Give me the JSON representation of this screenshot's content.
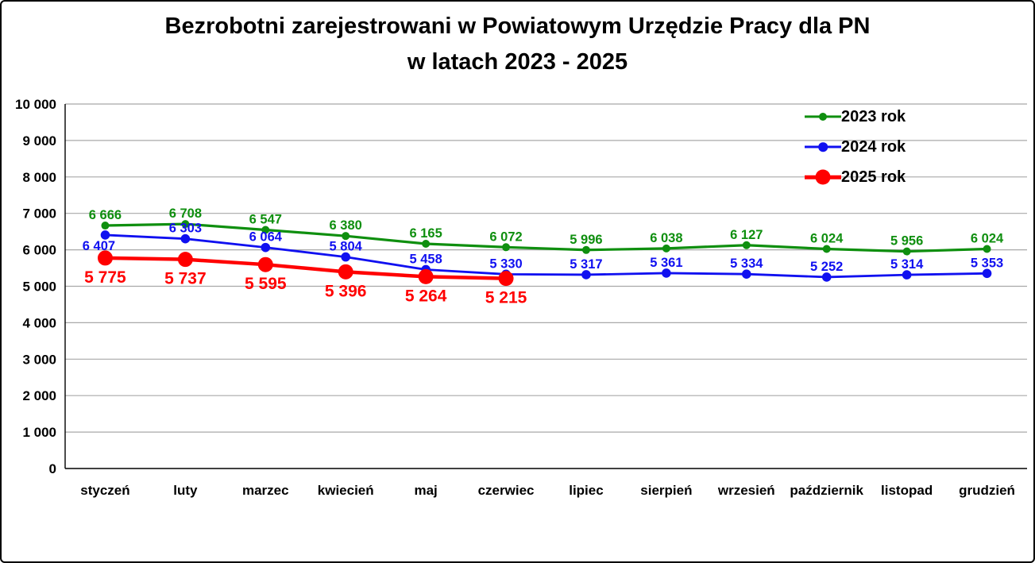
{
  "title": {
    "line1": "Bezrobotni zarejestrowani w Powiatowym Urzędzie Pracy dla PN",
    "line2": "w latach 2023 - 2025"
  },
  "chart_data": {
    "type": "line",
    "title": "Bezrobotni zarejestrowani w Powiatowym Urzędzie Pracy dla PN w latach 2023 - 2025",
    "categories": [
      "styczeń",
      "luty",
      "marzec",
      "kwiecień",
      "maj",
      "czerwiec",
      "lipiec",
      "sierpień",
      "wrzesień",
      "październik",
      "listopad",
      "grudzień"
    ],
    "series": [
      {
        "name": "2023 rok",
        "color": "#0F8F0F",
        "values": [
          6666,
          6708,
          6547,
          6380,
          6165,
          6072,
          5996,
          6038,
          6127,
          6024,
          5956,
          6024
        ],
        "marker_radius": 5,
        "line_width": 3.2,
        "label_font_size": 16.5,
        "label_position": "above"
      },
      {
        "name": "2024 rok",
        "color": "#1010F0",
        "values": [
          6407,
          6303,
          6064,
          5804,
          5458,
          5330,
          5317,
          5361,
          5334,
          5252,
          5314,
          5353
        ],
        "marker_radius": 5.8,
        "line_width": 2.8,
        "label_font_size": 16.5,
        "label_position": "above",
        "label_overrides": [
          {
            "index": 0,
            "position": "below",
            "dx": -8
          }
        ]
      },
      {
        "name": "2025 rok",
        "color": "#FF0000",
        "values": [
          5775,
          5737,
          5595,
          5396,
          5264,
          5215
        ],
        "marker_radius": 9.5,
        "line_width": 4.5,
        "label_font_size": 21,
        "label_position": "below"
      }
    ],
    "ylim": [
      0,
      10000
    ],
    "ytick_step": 1000,
    "ytick_labels": [
      "0",
      "1 000",
      "2 000",
      "3 000",
      "4 000",
      "5 000",
      "6 000",
      "7 000",
      "8 000",
      "9 000",
      "10 000"
    ],
    "grid": "horizontal",
    "legend_position": "top-right",
    "colors": {
      "grid": "#A8A8A8",
      "axis": "#000000",
      "background": "#FFFFFF",
      "border": "#000000"
    }
  }
}
